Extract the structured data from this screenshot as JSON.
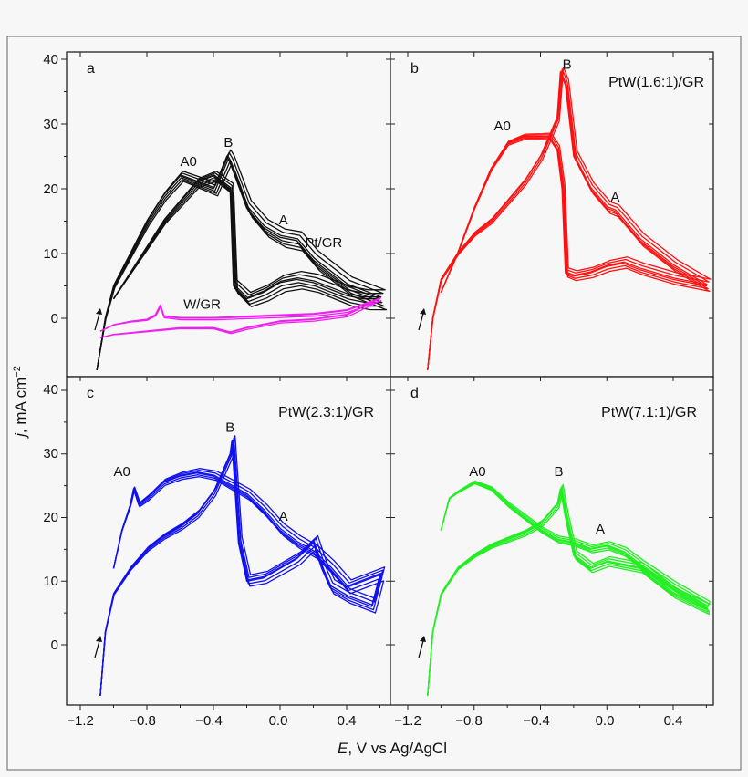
{
  "figure": {
    "panel_letters": [
      "a",
      "b",
      "c",
      "d"
    ],
    "x_axis_title_italic": "E",
    "x_axis_title_rest": ", V vs Ag/AgCl",
    "y_axis_title_italic": "j",
    "y_axis_title_rest": ", mA cm",
    "y_axis_title_sup": "−2",
    "x_tick_labels": [
      "−1.2",
      "−0.8",
      "−0.4",
      "0.0",
      "0.4"
    ],
    "y_tick_labels_top": [
      "0",
      "10",
      "20",
      "30",
      "40"
    ],
    "y_tick_labels_bottom": [
      "0",
      "10",
      "20",
      "30",
      "40"
    ]
  },
  "chart_data": [
    {
      "type": "line",
      "panel": "a",
      "title": "Pt/GR",
      "xlim": [
        -1.3,
        0.65
      ],
      "ylim": [
        -8,
        40
      ],
      "x_ticks": [
        -1.2,
        -0.8,
        -0.4,
        0.0,
        0.4
      ],
      "y_ticks": [
        0,
        10,
        20,
        30,
        40
      ],
      "peak_labels": [
        {
          "text": "A0",
          "x": -0.55,
          "y": 23.5
        },
        {
          "text": "B",
          "x": -0.31,
          "y": 26.5
        },
        {
          "text": "A",
          "x": 0.02,
          "y": 14.5
        }
      ],
      "series": [
        {
          "name": "Pt/GR",
          "color": "#111111",
          "cycles": 7,
          "forward": {
            "x": [
              -1.1,
              -1.05,
              -1.0,
              -0.9,
              -0.8,
              -0.7,
              -0.6,
              -0.5,
              -0.4,
              -0.32,
              -0.3,
              -0.2,
              -0.1,
              0.0,
              0.1,
              0.2,
              0.4,
              0.6
            ],
            "y": [
              -8,
              0,
              5,
              10,
              15,
              19,
              22,
              21,
              20,
              25,
              24,
              17,
              14,
              12.5,
              12,
              9,
              5,
              3
            ]
          },
          "reverse": {
            "x": [
              0.6,
              0.5,
              0.4,
              0.3,
              0.2,
              0.1,
              0.0,
              -0.1,
              -0.2,
              -0.28,
              -0.3,
              -0.4,
              -0.5,
              -0.6,
              -0.7,
              -0.8,
              -0.9,
              -1.0
            ],
            "y": [
              3,
              3,
              3.5,
              4.5,
              5.5,
              6,
              5.5,
              4,
              3,
              5,
              20,
              22,
              21,
              18,
              15,
              11,
              7,
              3
            ]
          },
          "spread": [
            0,
            0.8,
            1.6,
            2.4,
            3.2,
            4.0,
            4.8
          ]
        },
        {
          "name": "W/GR",
          "color": "#ee22ee",
          "cycles": 3,
          "forward": {
            "x": [
              -1.08,
              -1.0,
              -0.9,
              -0.8,
              -0.75,
              -0.72,
              -0.7,
              -0.6,
              -0.4,
              -0.2,
              0.0,
              0.2,
              0.4,
              0.6
            ],
            "y": [
              -2,
              -1,
              -0.5,
              -0.2,
              0.5,
              2,
              0.3,
              0,
              0,
              0.2,
              0.4,
              0.6,
              1.2,
              3
            ]
          },
          "reverse": {
            "x": [
              0.6,
              0.4,
              0.2,
              0.0,
              -0.2,
              -0.3,
              -0.4,
              -0.6,
              -0.8,
              -1.0,
              -1.08
            ],
            "y": [
              3,
              0.5,
              -0.2,
              -0.5,
              -1.5,
              -2.2,
              -1.5,
              -1.5,
              -2,
              -2.5,
              -3
            ]
          },
          "spread": [
            0,
            0.4,
            0.8
          ]
        }
      ],
      "series_labels": [
        {
          "text": "Pt/GR",
          "x": 0.15,
          "y": 11
        },
        {
          "text": "W/GR",
          "x": -0.58,
          "y": 1.5
        }
      ]
    },
    {
      "type": "line",
      "panel": "b",
      "title": "PtW(1.6:1)/GR",
      "xlim": [
        -1.3,
        0.65
      ],
      "ylim": [
        -8,
        40
      ],
      "x_ticks": [
        -1.2,
        -0.8,
        -0.4,
        0.0,
        0.4
      ],
      "y_ticks": [
        0,
        10,
        20,
        30,
        40
      ],
      "peak_labels": [
        {
          "text": "A0",
          "x": -0.63,
          "y": 29
        },
        {
          "text": "B",
          "x": -0.24,
          "y": 38.5
        },
        {
          "text": "A",
          "x": 0.05,
          "y": 18
        }
      ],
      "series": [
        {
          "name": "PtW(1.6:1)/GR",
          "color": "#ff1111",
          "cycles": 6,
          "forward": {
            "x": [
              -1.08,
              -1.05,
              -1.0,
              -0.9,
              -0.8,
              -0.7,
              -0.6,
              -0.5,
              -0.4,
              -0.3,
              -0.28,
              -0.25,
              -0.2,
              -0.1,
              0.0,
              0.05,
              0.1,
              0.2,
              0.4,
              0.6
            ],
            "y": [
              -8,
              0,
              6,
              10,
              13,
              15,
              18,
              21,
              25,
              31,
              38,
              36,
              25,
              20,
              17,
              16.5,
              15,
              12,
              8,
              5
            ]
          },
          "reverse": {
            "x": [
              0.6,
              0.4,
              0.2,
              0.1,
              0.0,
              -0.1,
              -0.2,
              -0.25,
              -0.27,
              -0.3,
              -0.35,
              -0.4,
              -0.5,
              -0.6,
              -0.7,
              -0.8,
              -0.9,
              -1.0
            ],
            "y": [
              5,
              6,
              7.5,
              8.5,
              8,
              7,
              6.5,
              7,
              20,
              26,
              28,
              28,
              28,
              27,
              23,
              17,
              10,
              4
            ]
          },
          "spread": [
            0,
            0.6,
            1.2,
            1.8,
            2.4,
            3.0
          ]
        }
      ]
    },
    {
      "type": "line",
      "panel": "c",
      "title": "PtW(2.3:1)/GR",
      "xlim": [
        -1.3,
        0.65
      ],
      "ylim": [
        -8,
        40
      ],
      "x_ticks": [
        -1.2,
        -0.8,
        -0.4,
        0.0,
        0.4
      ],
      "y_ticks": [
        0,
        10,
        20,
        30,
        40
      ],
      "peak_labels": [
        {
          "text": "A0",
          "x": -0.95,
          "y": 26.5
        },
        {
          "text": "B",
          "x": -0.3,
          "y": 33.5
        },
        {
          "text": "A",
          "x": 0.02,
          "y": 19.5
        }
      ],
      "series": [
        {
          "name": "PtW(2.3:1)/GR",
          "color": "#1111ee",
          "cycles": 6,
          "forward": {
            "x": [
              -1.08,
              -1.05,
              -1.0,
              -0.9,
              -0.8,
              -0.7,
              -0.6,
              -0.5,
              -0.4,
              -0.3,
              -0.29,
              -0.25,
              -0.2,
              -0.1,
              0.0,
              0.1,
              0.2,
              0.25,
              0.3,
              0.4,
              0.55,
              0.6
            ],
            "y": [
              -8,
              2,
              8,
              12,
              15,
              17,
              18.5,
              20.5,
              24,
              30,
              32,
              16,
              10,
              10.5,
              12,
              13.5,
              16,
              12,
              9,
              7.5,
              6,
              11
            ]
          },
          "reverse": {
            "x": [
              0.6,
              0.4,
              0.3,
              0.2,
              0.1,
              0.0,
              -0.1,
              -0.2,
              -0.3,
              -0.4,
              -0.5,
              -0.6,
              -0.7,
              -0.8,
              -0.85,
              -0.88,
              -0.9,
              -0.95,
              -1.0
            ],
            "y": [
              11,
              9,
              12,
              14.5,
              16,
              18,
              21,
              23.5,
              25,
              26.5,
              27,
              26.5,
              25.5,
              23,
              22,
              24.5,
              22,
              18,
              12
            ]
          },
          "spread": [
            0,
            0.7,
            1.4,
            2.1,
            2.8,
            3.5
          ]
        }
      ]
    },
    {
      "type": "line",
      "panel": "d",
      "title": "PtW(7.1:1)/GR",
      "xlim": [
        -1.3,
        0.65
      ],
      "ylim": [
        -8,
        40
      ],
      "x_ticks": [
        -1.2,
        -0.8,
        -0.4,
        0.0,
        0.4
      ],
      "y_ticks": [
        0,
        10,
        20,
        30,
        40
      ],
      "peak_labels": [
        {
          "text": "A0",
          "x": -0.78,
          "y": 26.5
        },
        {
          "text": "B",
          "x": -0.29,
          "y": 26.5
        },
        {
          "text": "A",
          "x": -0.04,
          "y": 17.5
        }
      ],
      "series": [
        {
          "name": "PtW(7.1:1)/GR",
          "color": "#22ee22",
          "cycles": 6,
          "forward": {
            "x": [
              -1.08,
              -1.05,
              -1.0,
              -0.9,
              -0.8,
              -0.7,
              -0.6,
              -0.5,
              -0.4,
              -0.3,
              -0.28,
              -0.25,
              -0.2,
              -0.1,
              0.0,
              0.1,
              0.2,
              0.3,
              0.4,
              0.6
            ],
            "y": [
              -8,
              2,
              8,
              12,
              14,
              15.5,
              16.5,
              17.5,
              19,
              22,
              24.5,
              20,
              14,
              12,
              13,
              12.5,
              12,
              10,
              8,
              5.5
            ]
          },
          "reverse": {
            "x": [
              0.6,
              0.4,
              0.2,
              0.1,
              0.0,
              -0.1,
              -0.2,
              -0.3,
              -0.4,
              -0.5,
              -0.6,
              -0.7,
              -0.8,
              -0.9,
              -0.95,
              -1.0
            ],
            "y": [
              6,
              9,
              12.5,
              14.5,
              15.5,
              15,
              16,
              16.5,
              18,
              20,
              22,
              24.5,
              25.5,
              24,
              23,
              18
            ]
          },
          "spread": [
            0,
            0.5,
            1.0,
            1.5,
            2.0,
            2.5
          ]
        }
      ]
    }
  ]
}
